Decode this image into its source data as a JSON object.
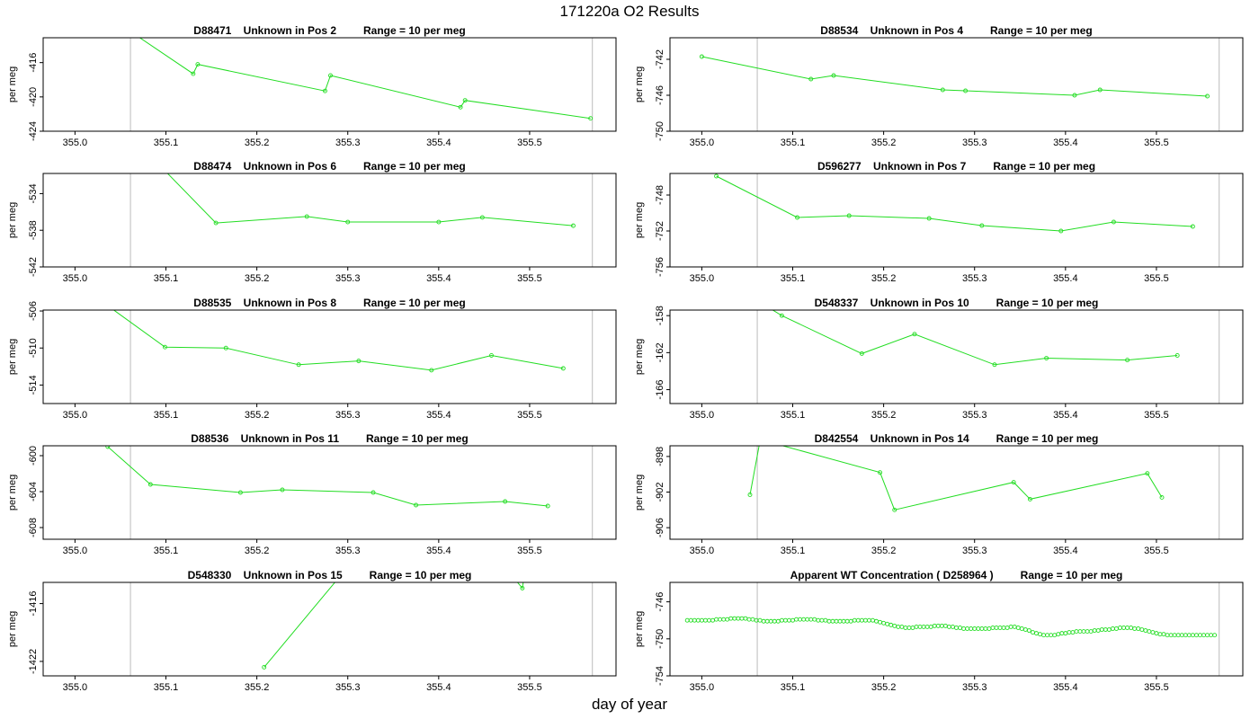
{
  "page": {
    "title": "171220a  O2 Results",
    "xlabel": "day of year"
  },
  "style": {
    "line_color": "#22dd22",
    "vline_color": "#bbbbbb",
    "frame_color": "#000000"
  },
  "chart_data": [
    {
      "type": "line",
      "title": "D88471    Unknown in Pos 2         Range = 10 per meg",
      "ylabel": "per meg",
      "xlim": [
        354.965,
        355.595
      ],
      "ylim": [
        -424,
        -413.1
      ],
      "xticks": [
        "355.0",
        "355.1",
        "355.2",
        "355.3",
        "355.4",
        "355.5"
      ],
      "yticks": [
        "-416",
        "-420",
        "-424"
      ],
      "vlines": [
        355.061,
        355.569
      ],
      "x": [
        355.035,
        355.13,
        355.135,
        355.275,
        355.281,
        355.424,
        355.429,
        355.567
      ],
      "y": [
        -410.5,
        -417.3,
        -416.2,
        -419.3,
        -417.5,
        -421.2,
        -420.4,
        -422.5
      ]
    },
    {
      "type": "line",
      "title": "D88534    Unknown in Pos 4         Range = 10 per meg",
      "ylabel": "per meg",
      "xlim": [
        354.965,
        355.595
      ],
      "ylim": [
        -750,
        -739.6
      ],
      "xticks": [
        "355.0",
        "355.1",
        "355.2",
        "355.3",
        "355.4",
        "355.5"
      ],
      "yticks": [
        "-742",
        "-746",
        "-750"
      ],
      "vlines": [
        355.061,
        355.569
      ],
      "x": [
        355.0,
        355.12,
        355.145,
        355.265,
        355.29,
        355.41,
        355.438,
        355.556
      ],
      "y": [
        -741.7,
        -744.2,
        -743.8,
        -745.4,
        -745.5,
        -746.0,
        -745.4,
        -746.1
      ]
    },
    {
      "type": "line",
      "title": "D88474    Unknown in Pos 6         Range = 10 per meg",
      "ylabel": "per meg",
      "xlim": [
        354.965,
        355.595
      ],
      "ylim": [
        -542,
        -531.8
      ],
      "xticks": [
        "355.0",
        "355.1",
        "355.2",
        "355.3",
        "355.4",
        "355.5"
      ],
      "yticks": [
        "-534",
        "-538",
        "-542"
      ],
      "vlines": [
        355.061,
        355.569
      ],
      "x": [
        355.04,
        355.155,
        355.255,
        355.3,
        355.4,
        355.448,
        355.548
      ],
      "y": [
        -525.5,
        -537.2,
        -536.5,
        -537.1,
        -537.1,
        -536.6,
        -537.5
      ]
    },
    {
      "type": "line",
      "title": "D596277    Unknown in Pos 7         Range = 10 per meg",
      "ylabel": "per meg",
      "xlim": [
        354.965,
        355.595
      ],
      "ylim": [
        -756,
        -745.6
      ],
      "xticks": [
        "355.0",
        "355.1",
        "355.2",
        "355.3",
        "355.4",
        "355.5"
      ],
      "yticks": [
        "-748",
        "-752",
        "-756"
      ],
      "vlines": [
        355.061,
        355.569
      ],
      "x": [
        355.016,
        355.105,
        355.162,
        355.25,
        355.308,
        355.395,
        355.453,
        355.54
      ],
      "y": [
        -745.9,
        -750.5,
        -750.3,
        -750.6,
        -751.4,
        -752.0,
        -751.0,
        -751.5
      ]
    },
    {
      "type": "line",
      "title": "D88535    Unknown in Pos 8         Range = 10 per meg",
      "ylabel": "per meg",
      "xlim": [
        354.965,
        355.595
      ],
      "ylim": [
        -516,
        -505.9
      ],
      "xticks": [
        "355.0",
        "355.1",
        "355.2",
        "355.3",
        "355.4",
        "355.5"
      ],
      "yticks": [
        "-506",
        "-510",
        "-514"
      ],
      "vlines": [
        355.061,
        355.569
      ],
      "x": [
        355.03,
        355.099,
        355.166,
        355.246,
        355.312,
        355.392,
        355.458,
        355.537
      ],
      "y": [
        -505.0,
        -509.9,
        -510.0,
        -511.8,
        -511.4,
        -512.4,
        -510.8,
        -512.2
      ]
    },
    {
      "type": "line",
      "title": "D548337    Unknown in Pos 10         Range = 10 per meg",
      "ylabel": "per meg",
      "xlim": [
        354.965,
        355.595
      ],
      "ylim": [
        -167.5,
        -157.4
      ],
      "xticks": [
        "355.0",
        "355.1",
        "355.2",
        "355.3",
        "355.4",
        "355.5"
      ],
      "yticks": [
        "-158",
        "-162",
        "-166"
      ],
      "vlines": [
        355.061,
        355.569
      ],
      "x": [
        355.03,
        355.088,
        355.176,
        355.234,
        355.322,
        355.379,
        355.468,
        355.523
      ],
      "y": [
        -154.5,
        -158.0,
        -162.1,
        -160.0,
        -163.3,
        -162.6,
        -162.8,
        -162.3
      ]
    },
    {
      "type": "line",
      "title": "D88536    Unknown in Pos 11         Range = 10 per meg",
      "ylabel": "per meg",
      "xlim": [
        354.965,
        355.595
      ],
      "ylim": [
        -609.3,
        -598.9
      ],
      "xticks": [
        "355.0",
        "355.1",
        "355.2",
        "355.3",
        "355.4",
        "355.5"
      ],
      "yticks": [
        "-600",
        "-604",
        "-608"
      ],
      "vlines": [
        355.061,
        355.569
      ],
      "x": [
        355.036,
        355.083,
        355.182,
        355.228,
        355.328,
        355.375,
        355.473,
        355.52
      ],
      "y": [
        -599.0,
        -603.2,
        -604.1,
        -603.8,
        -604.1,
        -605.5,
        -605.1,
        -605.6
      ]
    },
    {
      "type": "line",
      "title": "D842554    Unknown in Pos 14         Range = 10 per meg",
      "ylabel": "per meg",
      "xlim": [
        354.965,
        355.595
      ],
      "ylim": [
        -907.3,
        -896.8
      ],
      "xticks": [
        "355.0",
        "355.1",
        "355.2",
        "355.3",
        "355.4",
        "355.5"
      ],
      "yticks": [
        "-898",
        "-902",
        "-906"
      ],
      "vlines": [
        355.061,
        355.569
      ],
      "x": [
        355.053,
        355.069,
        355.082,
        355.196,
        355.212,
        355.343,
        355.361,
        355.49,
        355.506
      ],
      "y": [
        -902.3,
        -893.5,
        -896.6,
        -899.8,
        -904.0,
        -900.9,
        -902.8,
        -899.9,
        -902.6
      ]
    },
    {
      "type": "line",
      "title": "D548330    Unknown in Pos 15         Range = 10 per meg",
      "ylabel": "per meg",
      "xlim": [
        354.965,
        355.595
      ],
      "ylim": [
        -1423.5,
        -1413.8
      ],
      "xticks": [
        "355.0",
        "355.1",
        "355.2",
        "355.3",
        "355.4",
        "355.5"
      ],
      "yticks": [
        "-1416",
        "-1422"
      ],
      "vlines": [
        355.061,
        355.569
      ],
      "x": [
        355.208,
        355.315,
        355.475,
        355.492,
        355.497
      ],
      "y": [
        -1422.6,
        -1410.5,
        -1412.5,
        -1414.4,
        -1411.0
      ]
    },
    {
      "type": "line",
      "title": "Apparent WT Concentration ( D258964 )         Range = 10 per meg",
      "ylabel": "per meg",
      "xlim": [
        354.965,
        355.595
      ],
      "ylim": [
        -754,
        -743.9
      ],
      "xticks": [
        "355.0",
        "355.1",
        "355.2",
        "355.3",
        "355.4",
        "355.5"
      ],
      "yticks": [
        "-746",
        "-750",
        "-754"
      ],
      "vlines": [
        355.061,
        355.569
      ],
      "x": [
        354.984,
        354.988,
        354.992,
        354.996,
        355.0,
        355.004,
        355.008,
        355.012,
        355.016,
        355.02,
        355.024,
        355.028,
        355.032,
        355.036,
        355.04,
        355.044,
        355.048,
        355.052,
        355.056,
        355.06,
        355.064,
        355.068,
        355.072,
        355.076,
        355.08,
        355.084,
        355.088,
        355.092,
        355.096,
        355.1,
        355.104,
        355.108,
        355.112,
        355.116,
        355.12,
        355.124,
        355.128,
        355.132,
        355.136,
        355.14,
        355.144,
        355.148,
        355.152,
        355.156,
        355.16,
        355.164,
        355.168,
        355.172,
        355.176,
        355.18,
        355.184,
        355.188,
        355.192,
        355.196,
        355.2,
        355.204,
        355.208,
        355.212,
        355.216,
        355.22,
        355.224,
        355.228,
        355.232,
        355.236,
        355.24,
        355.244,
        355.248,
        355.252,
        355.256,
        355.26,
        355.264,
        355.268,
        355.272,
        355.276,
        355.28,
        355.284,
        355.288,
        355.292,
        355.296,
        355.3,
        355.304,
        355.308,
        355.312,
        355.316,
        355.32,
        355.324,
        355.328,
        355.332,
        355.336,
        355.34,
        355.344,
        355.348,
        355.352,
        355.356,
        355.36,
        355.364,
        355.368,
        355.372,
        355.376,
        355.38,
        355.384,
        355.388,
        355.392,
        355.396,
        355.4,
        355.404,
        355.408,
        355.412,
        355.416,
        355.42,
        355.424,
        355.428,
        355.432,
        355.436,
        355.44,
        355.444,
        355.448,
        355.452,
        355.456,
        355.46,
        355.464,
        355.468,
        355.472,
        355.476,
        355.48,
        355.484,
        355.488,
        355.492,
        355.496,
        355.5,
        355.504,
        355.508,
        355.512,
        355.516,
        355.52,
        355.524,
        355.528,
        355.532,
        355.536,
        355.54,
        355.544,
        355.548,
        355.552,
        355.556,
        355.56,
        355.564
      ],
      "y": [
        -748.0,
        -748.0,
        -748.0,
        -748.0,
        -748.0,
        -748.0,
        -748.0,
        -748.0,
        -747.9,
        -747.9,
        -747.9,
        -747.9,
        -747.8,
        -747.8,
        -747.8,
        -747.8,
        -747.8,
        -747.9,
        -747.9,
        -748.0,
        -748.0,
        -748.1,
        -748.1,
        -748.1,
        -748.1,
        -748.1,
        -748.0,
        -748.0,
        -748.0,
        -748.0,
        -747.9,
        -747.9,
        -747.9,
        -747.9,
        -747.9,
        -747.9,
        -748.0,
        -748.0,
        -748.0,
        -748.1,
        -748.1,
        -748.1,
        -748.1,
        -748.1,
        -748.1,
        -748.1,
        -748.0,
        -748.0,
        -748.0,
        -748.0,
        -748.0,
        -748.0,
        -748.1,
        -748.2,
        -748.3,
        -748.4,
        -748.5,
        -748.6,
        -748.7,
        -748.7,
        -748.8,
        -748.8,
        -748.8,
        -748.7,
        -748.7,
        -748.7,
        -748.7,
        -748.7,
        -748.6,
        -748.6,
        -748.6,
        -748.6,
        -748.7,
        -748.7,
        -748.8,
        -748.8,
        -748.9,
        -748.9,
        -748.9,
        -748.9,
        -748.9,
        -748.9,
        -748.9,
        -748.9,
        -748.8,
        -748.8,
        -748.8,
        -748.8,
        -748.8,
        -748.7,
        -748.7,
        -748.8,
        -748.9,
        -749.0,
        -749.1,
        -749.3,
        -749.4,
        -749.5,
        -749.6,
        -749.6,
        -749.6,
        -749.6,
        -749.5,
        -749.4,
        -749.4,
        -749.3,
        -749.3,
        -749.2,
        -749.2,
        -749.2,
        -749.2,
        -749.2,
        -749.1,
        -749.1,
        -749.0,
        -749.0,
        -749.0,
        -748.9,
        -748.9,
        -748.8,
        -748.8,
        -748.8,
        -748.8,
        -748.9,
        -748.9,
        -749.0,
        -749.1,
        -749.2,
        -749.3,
        -749.4,
        -749.5,
        -749.5,
        -749.6,
        -749.6,
        -749.6,
        -749.6,
        -749.6,
        -749.6,
        -749.6,
        -749.6,
        -749.6,
        -749.6,
        -749.6,
        -749.6,
        -749.6,
        -749.6
      ]
    }
  ]
}
